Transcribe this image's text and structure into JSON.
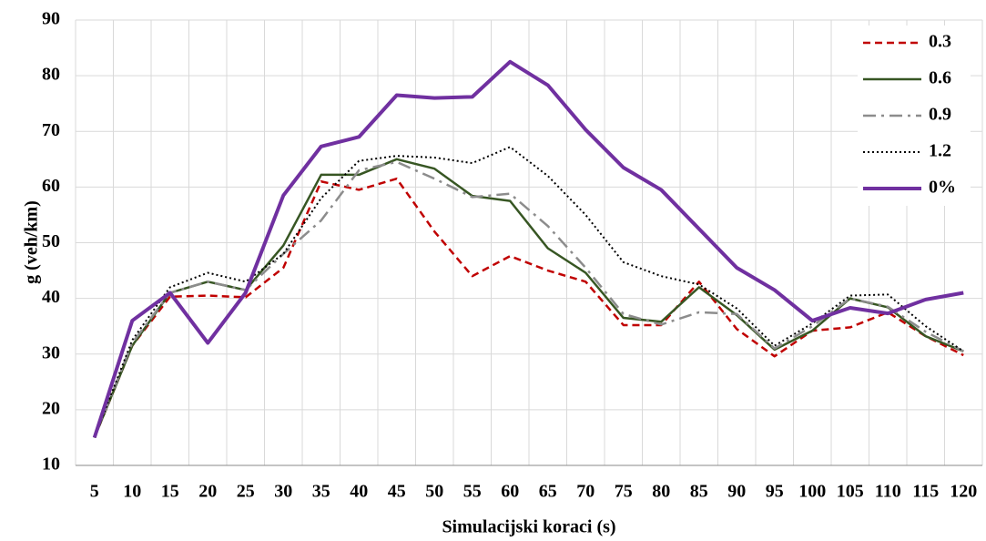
{
  "chart_data": {
    "type": "line",
    "xlabel": "Simulacijski koraci (s)",
    "ylabel": "g (veh/km)",
    "categories": [
      "5",
      "10",
      "15",
      "20",
      "25",
      "30",
      "35",
      "40",
      "45",
      "50",
      "55",
      "60",
      "65",
      "70",
      "75",
      "80",
      "85",
      "90",
      "95",
      "100",
      "105",
      "110",
      "115",
      "120"
    ],
    "ylim": [
      10,
      90
    ],
    "yticks": [
      10,
      20,
      30,
      40,
      50,
      60,
      70,
      80,
      90
    ],
    "grid": true,
    "legend": "top-right",
    "series": [
      {
        "name": "0.3",
        "color": "#c00000",
        "dash": "dashed",
        "line_width": 2.5,
        "values": [
          15,
          31.5,
          40.3,
          40.5,
          40.2,
          45.5,
          61,
          59.5,
          61.5,
          52,
          44,
          47.6,
          45,
          43,
          35.2,
          35.2,
          43,
          34.5,
          29.6,
          34.2,
          34.8,
          37.5,
          33.2,
          29.8
        ]
      },
      {
        "name": "0.6",
        "color": "#375623",
        "dash": "solid",
        "line_width": 2.5,
        "values": [
          15,
          31.5,
          41,
          43,
          41.5,
          49.5,
          62.2,
          62.2,
          65,
          63.3,
          58.4,
          57.5,
          49,
          44.6,
          36.5,
          35.8,
          42,
          37,
          30.8,
          34.2,
          40,
          38.4,
          33.2,
          30.5
        ]
      },
      {
        "name": "0.9",
        "color": "#8c8c8c",
        "dash": "dashdot",
        "line_width": 2.5,
        "values": [
          15,
          32,
          41,
          43,
          41.5,
          48,
          54,
          63,
          64.5,
          61.5,
          58.2,
          58.8,
          53,
          45.5,
          37.2,
          35.3,
          37.5,
          37.2,
          31,
          35,
          40,
          38.5,
          34,
          30.5
        ]
      },
      {
        "name": "1.2",
        "color": "#000000",
        "dash": "dotted",
        "line_width": 2,
        "values": [
          15,
          32.5,
          42,
          44.6,
          43,
          48,
          58,
          64.7,
          65.6,
          65.3,
          64.3,
          67.2,
          62,
          55,
          46.5,
          44,
          42.5,
          38.2,
          31.5,
          35.5,
          40.5,
          40.7,
          35,
          30.5
        ]
      },
      {
        "name": "0%",
        "color": "#7030a0",
        "dash": "solid",
        "line_width": 4,
        "values": [
          15,
          36,
          41,
          32,
          41,
          58.5,
          67.3,
          69,
          76.5,
          76,
          76.2,
          82.5,
          78.3,
          70.3,
          63.5,
          59.5,
          52.5,
          45.5,
          41.5,
          36,
          38.3,
          37.3,
          39.8,
          41
        ]
      }
    ]
  }
}
